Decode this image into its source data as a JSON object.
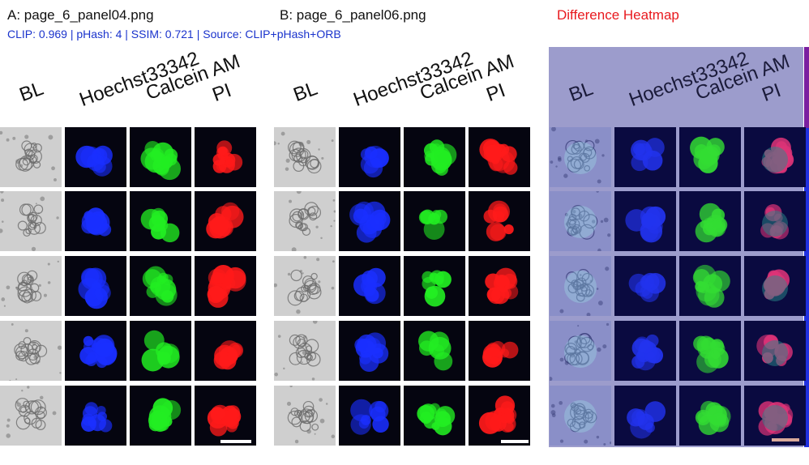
{
  "header": {
    "title_a": "A: page_6_panel04.png",
    "title_b": "B: page_6_panel06.png",
    "title_diff": "Difference Heatmap",
    "metrics": "CLIP: 0.969 | pHash: 4 | SSIM: 0.721 | Source: CLIP+pHash+ORB"
  },
  "columns": [
    "BL",
    "Hoechst33342",
    "Calcein AM",
    "PI"
  ],
  "colors": {
    "title_diff": "#e8191e",
    "metrics": "#1a33cc",
    "heat_bg": "#9c9ccc"
  },
  "panels": [
    {
      "id": "panel-a",
      "type": "micrograph",
      "rows": 5,
      "scale_bar": true
    },
    {
      "id": "panel-b",
      "type": "micrograph",
      "rows": 5,
      "scale_bar": true
    },
    {
      "id": "panel-diff",
      "type": "heatmap",
      "rows": 5,
      "scale_bar": true
    }
  ]
}
